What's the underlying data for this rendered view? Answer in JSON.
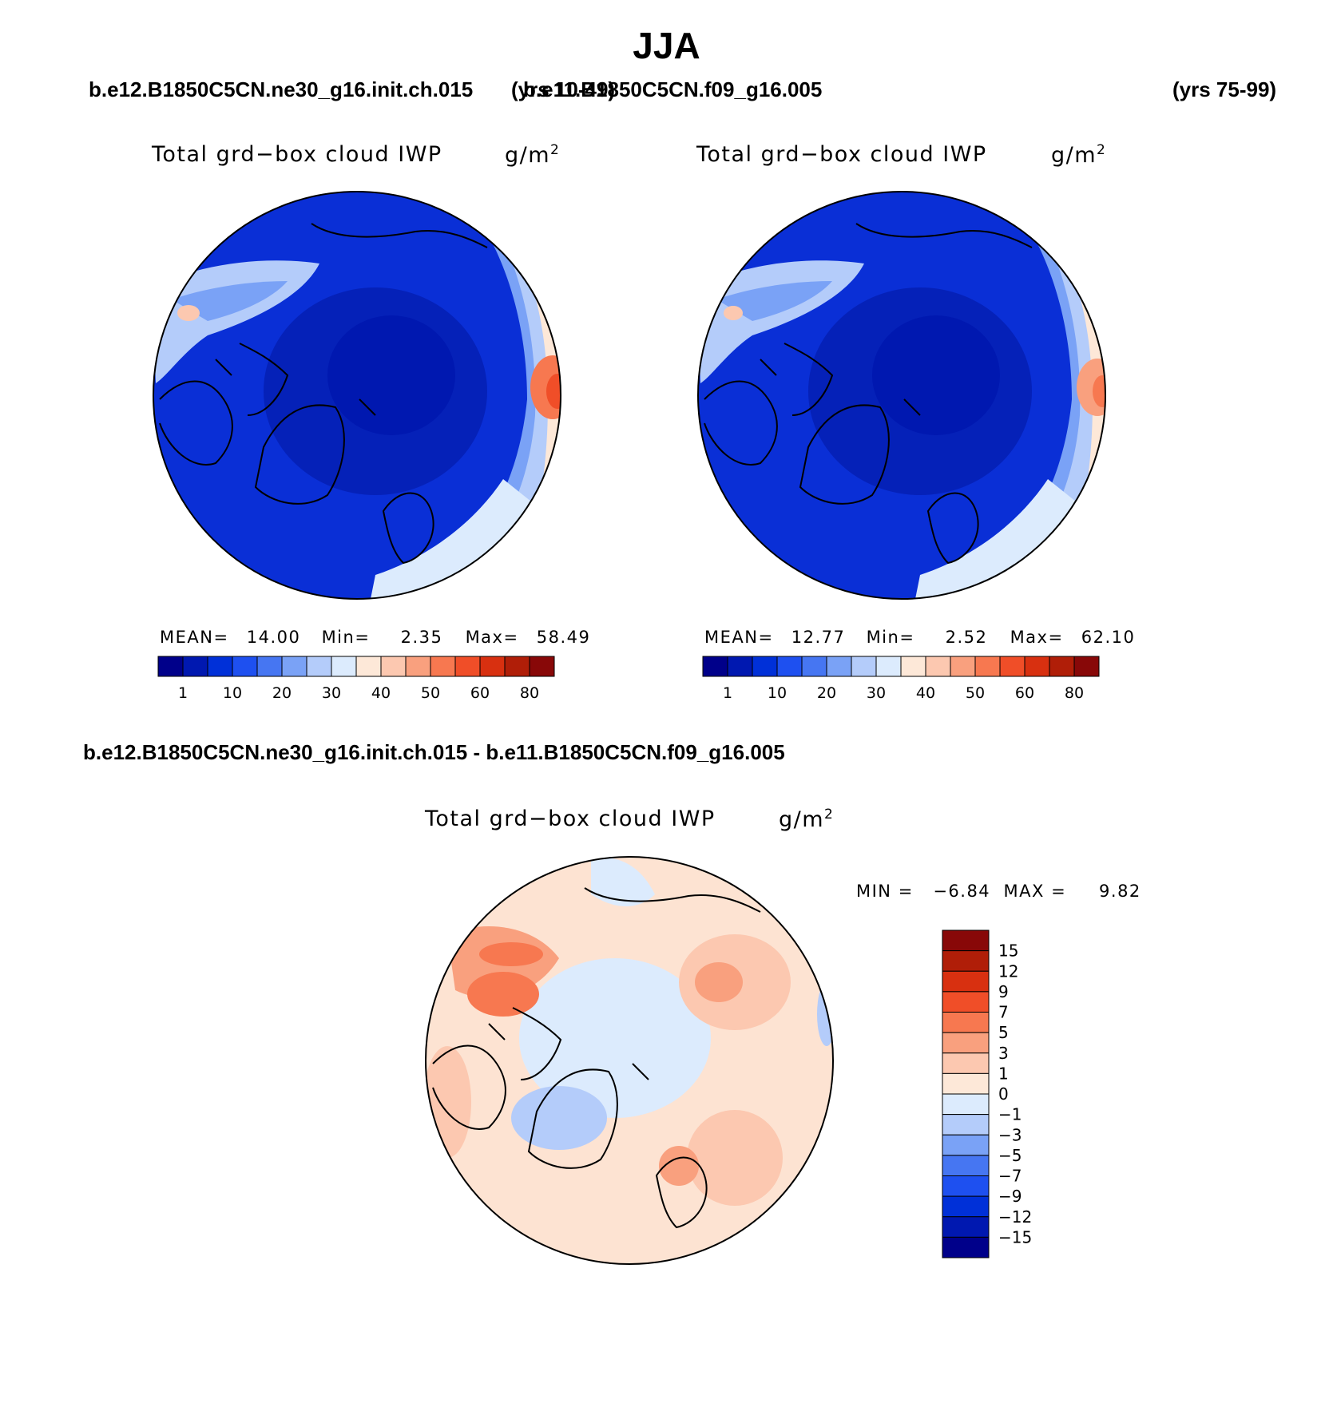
{
  "page": {
    "title": "JJA"
  },
  "headers": {
    "case1": "b.e12.B1850C5CN.ne30_g16.init.ch.015",
    "case1_years": "(yrs 10-49)",
    "case2": "b.e11.B1850C5CN.f09_g16.005",
    "case2_years": "(yrs 75-99)",
    "diff": "b.e12.B1850C5CN.ne30_g16.init.ch.015 - b.e11.B1850C5CN.f09_g16.005"
  },
  "panels": [
    {
      "id": "panel-1",
      "variable": "Total grd−box cloud IWP",
      "units": "g/m",
      "units_exp": "2",
      "stats": {
        "mean_label": "MEAN=",
        "mean": "14.00",
        "min_label": "Min=",
        "min": "2.35",
        "max_label": "Max=",
        "max": "58.49"
      },
      "colorbar_labels": [
        "1",
        "10",
        "20",
        "30",
        "40",
        "50",
        "60",
        "80"
      ]
    },
    {
      "id": "panel-2",
      "variable": "Total grd−box cloud IWP",
      "units": "g/m",
      "units_exp": "2",
      "stats": {
        "mean_label": "MEAN=",
        "mean": "12.77",
        "min_label": "Min=",
        "min": "2.52",
        "max_label": "Max=",
        "max": "62.10"
      },
      "colorbar_labels": [
        "1",
        "10",
        "20",
        "30",
        "40",
        "50",
        "60",
        "80"
      ]
    }
  ],
  "diff_panel": {
    "variable": "Total grd−box cloud IWP",
    "units": "g/m",
    "units_exp": "2",
    "minmax": "MIN =   −6.84  MAX =     9.82",
    "colorbar_labels": [
      "15",
      "12",
      "9",
      "7",
      "5",
      "3",
      "1",
      "0",
      "−1",
      "−3",
      "−5",
      "−7",
      "−9",
      "−12",
      "−15"
    ]
  },
  "palettes": {
    "sequential": [
      "#00008a",
      "#0018b0",
      "#0030d8",
      "#1e50f0",
      "#4676f2",
      "#7aa2f6",
      "#b4ccfa",
      "#dcebfd",
      "#fde8d8",
      "#fcc8b0",
      "#f9a07e",
      "#f77850",
      "#f04e28",
      "#d83010",
      "#b01e08",
      "#880808"
    ],
    "diverging": [
      "#880808",
      "#b01e08",
      "#d83010",
      "#f04e28",
      "#f77850",
      "#f9a07e",
      "#fcc8b0",
      "#fde8d8",
      "#dcebfd",
      "#b4ccfa",
      "#7aa2f6",
      "#4676f2",
      "#1e50f0",
      "#0030d8",
      "#0018b0",
      "#00008a"
    ],
    "map_fill_deep": "#0a2fd6",
    "map_fill_core": "#0521b8",
    "map_fill_diff": "#fde3d2",
    "coast": "#000000"
  }
}
